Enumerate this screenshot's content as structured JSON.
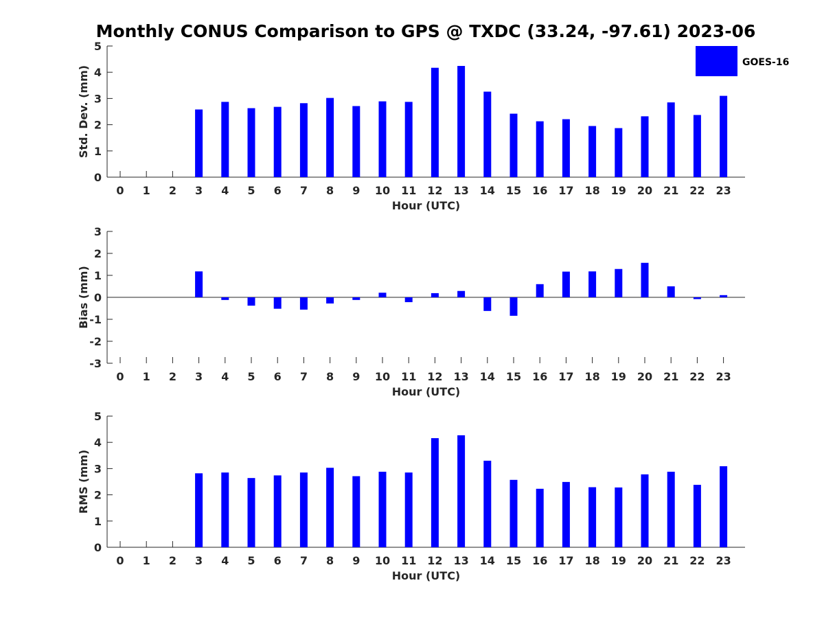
{
  "chart_data": {
    "title": "Monthly CONUS Comparison to GPS @ TXDC (33.24, -97.61) 2023-06",
    "legend": {
      "label": "GOES-16",
      "position": "top-right",
      "color": "#0000ff"
    },
    "bar_color": "#0000ff",
    "panels": [
      {
        "type": "bar",
        "ylabel": "Std. Dev. (mm)",
        "xlabel": "Hour (UTC)",
        "ylim": [
          0,
          5
        ],
        "yticks": [
          0,
          1,
          2,
          3,
          4,
          5
        ],
        "categories": [
          0,
          1,
          2,
          3,
          4,
          5,
          6,
          7,
          8,
          9,
          10,
          11,
          12,
          13,
          14,
          15,
          16,
          17,
          18,
          19,
          20,
          21,
          22,
          23
        ],
        "values": [
          null,
          null,
          null,
          2.58,
          2.87,
          2.63,
          2.68,
          2.82,
          3.02,
          2.71,
          2.89,
          2.87,
          4.17,
          4.24,
          3.26,
          2.42,
          2.13,
          2.21,
          1.95,
          1.87,
          2.32,
          2.85,
          2.37,
          3.1
        ]
      },
      {
        "type": "bar",
        "ylabel": "Bias (mm)",
        "xlabel": "Hour (UTC)",
        "ylim": [
          -3,
          3
        ],
        "yticks": [
          -3,
          -2,
          -1,
          0,
          1,
          2,
          3
        ],
        "categories": [
          0,
          1,
          2,
          3,
          4,
          5,
          6,
          7,
          8,
          9,
          10,
          11,
          12,
          13,
          14,
          15,
          16,
          17,
          18,
          19,
          20,
          21,
          22,
          23
        ],
        "values": [
          null,
          null,
          null,
          1.18,
          -0.12,
          -0.38,
          -0.52,
          -0.56,
          -0.28,
          -0.12,
          0.21,
          -0.22,
          0.19,
          0.29,
          -0.62,
          -0.84,
          0.6,
          1.17,
          1.18,
          1.29,
          1.57,
          0.5,
          -0.08,
          0.1
        ]
      },
      {
        "type": "bar",
        "ylabel": "RMS (mm)",
        "xlabel": "Hour (UTC)",
        "ylim": [
          0,
          5
        ],
        "yticks": [
          0,
          1,
          2,
          3,
          4,
          5
        ],
        "categories": [
          0,
          1,
          2,
          3,
          4,
          5,
          6,
          7,
          8,
          9,
          10,
          11,
          12,
          13,
          14,
          15,
          16,
          17,
          18,
          19,
          20,
          21,
          22,
          23
        ],
        "values": [
          null,
          null,
          null,
          2.82,
          2.85,
          2.64,
          2.74,
          2.85,
          3.03,
          2.71,
          2.88,
          2.85,
          4.16,
          4.27,
          3.3,
          2.57,
          2.23,
          2.49,
          2.29,
          2.28,
          2.78,
          2.88,
          2.38,
          3.09
        ]
      }
    ]
  }
}
